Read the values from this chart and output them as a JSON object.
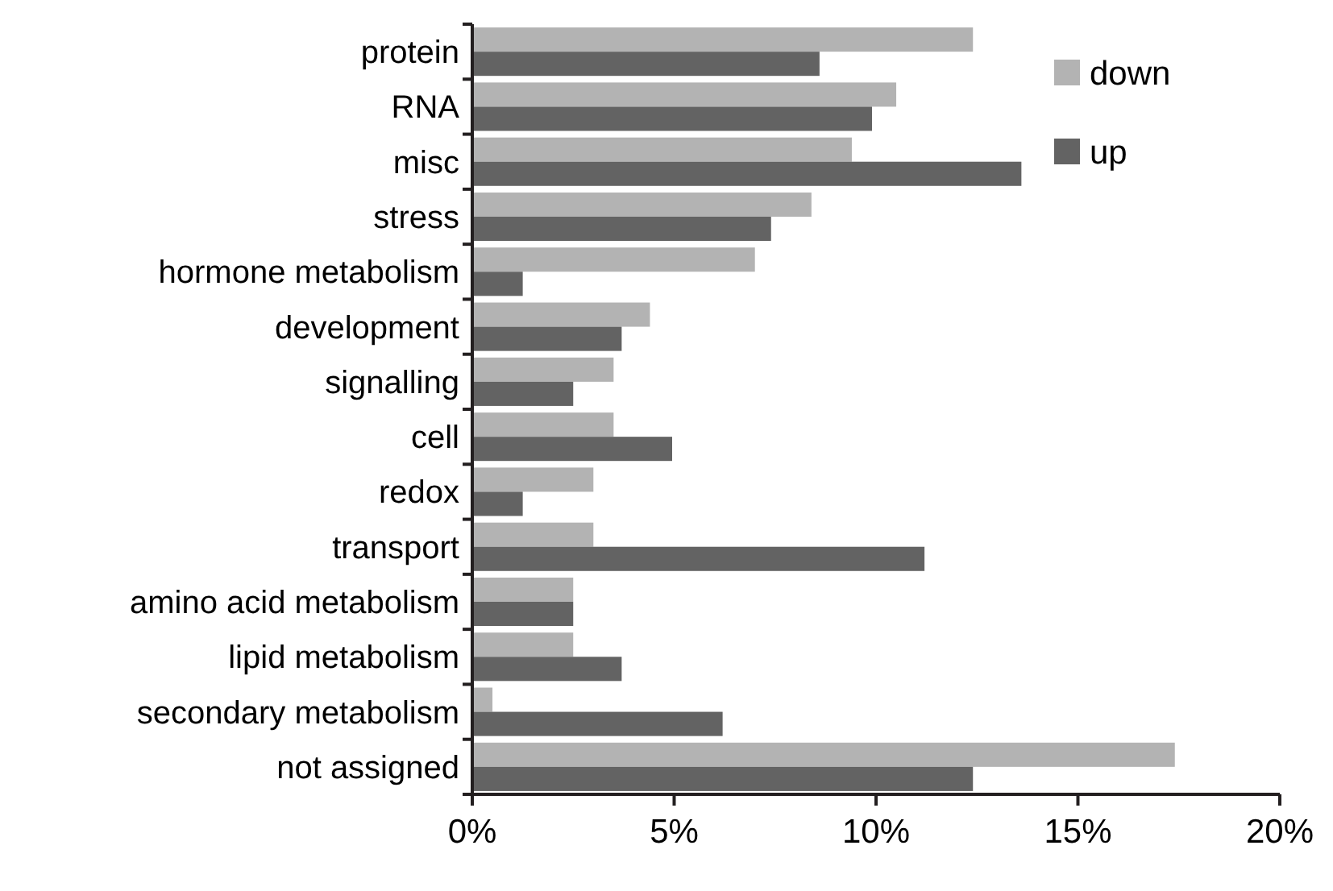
{
  "chart_data": {
    "type": "bar",
    "orientation": "horizontal",
    "categories": [
      "protein",
      "RNA",
      "misc",
      "stress",
      "hormone metabolism",
      "development",
      "signalling",
      "cell",
      "redox",
      "transport",
      "amino acid metabolism",
      "lipid metabolism",
      "secondary metabolism",
      "not assigned"
    ],
    "series": [
      {
        "name": "down",
        "color": "#b3b3b3",
        "values": [
          12.4,
          10.5,
          9.4,
          8.4,
          7.0,
          4.4,
          3.5,
          3.5,
          3.0,
          3.0,
          2.5,
          2.5,
          0.5,
          17.4
        ]
      },
      {
        "name": "up",
        "color": "#636363",
        "values": [
          8.6,
          9.9,
          13.6,
          7.4,
          1.25,
          3.7,
          2.5,
          4.95,
          1.25,
          11.2,
          2.5,
          3.7,
          6.2,
          12.4
        ]
      }
    ],
    "xlim": [
      0,
      20
    ],
    "xticks": [
      {
        "value": 0,
        "label": "0%"
      },
      {
        "value": 5,
        "label": "5%"
      },
      {
        "value": 10,
        "label": "10%"
      },
      {
        "value": 15,
        "label": "15%"
      },
      {
        "value": 20,
        "label": "20%"
      }
    ],
    "grid": false,
    "legend": "top right"
  }
}
